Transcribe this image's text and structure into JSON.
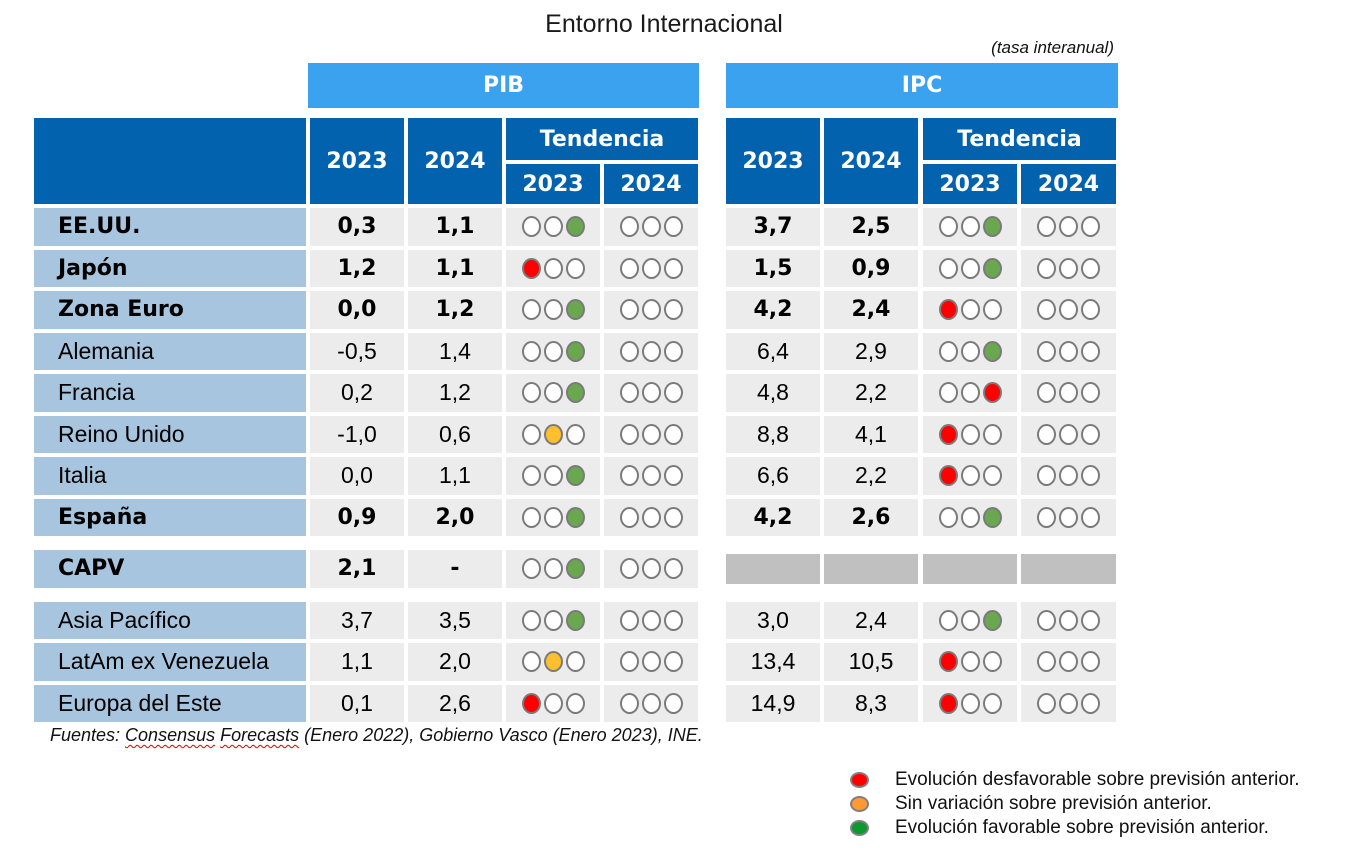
{
  "title": "Entorno Internacional",
  "subtitle": "(tasa interanual)",
  "groups": {
    "pib": "PIB",
    "ipc": "IPC"
  },
  "headers": {
    "year1": "2023",
    "year2": "2024",
    "trend": "Tendencia",
    "trend_year1": "2023",
    "trend_year2": "2024"
  },
  "colors": {
    "header_dark": "#0262ae",
    "header_light": "#3aa2ee",
    "name_cell": "#a7c5de",
    "value_cell": "#ececec",
    "na_cell": "#c0c0c0",
    "red": "#ff0000",
    "yellow": "#fdbf2d",
    "green": "#6aa84f"
  },
  "rows": [
    {
      "name": "EE.UU.",
      "bold": true,
      "pib": [
        "0,3",
        "1,1"
      ],
      "pib_trend": [
        "green",
        "none"
      ],
      "ipc": [
        "3,7",
        "2,5"
      ],
      "ipc_trend": [
        "green",
        "none"
      ]
    },
    {
      "name": "Japón",
      "bold": true,
      "pib": [
        "1,2",
        "1,1"
      ],
      "pib_trend": [
        "red",
        "none"
      ],
      "ipc": [
        "1,5",
        "0,9"
      ],
      "ipc_trend": [
        "green",
        "none"
      ]
    },
    {
      "name": "Zona Euro",
      "bold": true,
      "pib": [
        "0,0",
        "1,2"
      ],
      "pib_trend": [
        "green",
        "none"
      ],
      "ipc": [
        "4,2",
        "2,4"
      ],
      "ipc_trend": [
        "red",
        "none"
      ]
    },
    {
      "name": "Alemania",
      "bold": false,
      "pib": [
        "-0,5",
        "1,4"
      ],
      "pib_trend": [
        "green",
        "none"
      ],
      "ipc": [
        "6,4",
        "2,9"
      ],
      "ipc_trend": [
        "green",
        "none"
      ]
    },
    {
      "name": "Francia",
      "bold": false,
      "pib": [
        "0,2",
        "1,2"
      ],
      "pib_trend": [
        "green",
        "none"
      ],
      "ipc": [
        "4,8",
        "2,2"
      ],
      "ipc_trend": [
        "red-right",
        "none"
      ]
    },
    {
      "name": "Reino Unido",
      "bold": false,
      "pib": [
        "-1,0",
        "0,6"
      ],
      "pib_trend": [
        "yellow",
        "none"
      ],
      "ipc": [
        "8,8",
        "4,1"
      ],
      "ipc_trend": [
        "red",
        "none"
      ]
    },
    {
      "name": "Italia",
      "bold": false,
      "pib": [
        "0,0",
        "1,1"
      ],
      "pib_trend": [
        "green",
        "none"
      ],
      "ipc": [
        "6,6",
        "2,2"
      ],
      "ipc_trend": [
        "red",
        "none"
      ]
    },
    {
      "name": "España",
      "bold": true,
      "pib": [
        "0,9",
        "2,0"
      ],
      "pib_trend": [
        "green",
        "none"
      ],
      "ipc": [
        "4,2",
        "2,6"
      ],
      "ipc_trend": [
        "green",
        "none"
      ]
    },
    {
      "name": "CAPV",
      "bold": true,
      "pib": [
        "2,1",
        "-"
      ],
      "pib_trend": [
        "green",
        "none"
      ],
      "ipc": null,
      "ipc_trend": null
    },
    {
      "name": "Asia Pacífico",
      "bold": false,
      "pib": [
        "3,7",
        "3,5"
      ],
      "pib_trend": [
        "green",
        "none"
      ],
      "ipc": [
        "3,0",
        "2,4"
      ],
      "ipc_trend": [
        "green",
        "none"
      ]
    },
    {
      "name": "LatAm ex Venezuela",
      "bold": false,
      "pib": [
        "1,1",
        "2,0"
      ],
      "pib_trend": [
        "yellow",
        "none"
      ],
      "ipc": [
        "13,4",
        "10,5"
      ],
      "ipc_trend": [
        "red",
        "none"
      ]
    },
    {
      "name": "Europa del Este",
      "bold": false,
      "pib": [
        "0,1",
        "2,6"
      ],
      "pib_trend": [
        "red",
        "none"
      ],
      "ipc": [
        "14,9",
        "8,3"
      ],
      "ipc_trend": [
        "red",
        "none"
      ]
    }
  ],
  "source": {
    "prefix": "Fuentes: ",
    "link1": "Consensus",
    "space": " ",
    "link2": "Forecasts",
    "suffix": " (Enero 2022), Gobierno Vasco (Enero 2023), INE."
  },
  "legend": [
    {
      "color": "#ff0000",
      "label": "Evolución desfavorable sobre previsión anterior."
    },
    {
      "color": "#ff9933",
      "label": "Sin variación sobre previsión anterior."
    },
    {
      "color": "#0b9a2f",
      "label": "Evolución favorable sobre previsión anterior."
    }
  ]
}
